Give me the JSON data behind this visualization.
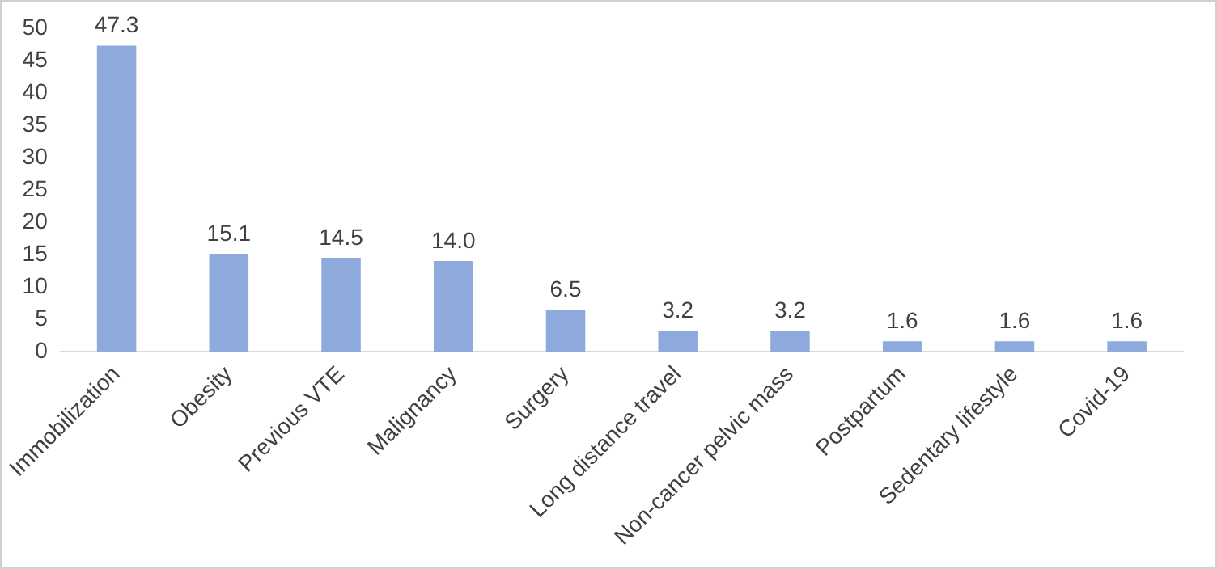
{
  "chart_data": {
    "type": "bar",
    "categories": [
      "Immobilization",
      "Obesity",
      "Previous VTE",
      "Malignancy",
      "Surgery",
      "Long distance travel",
      "Non-cancer pelvic mass",
      "Postpartum",
      "Sedentary lifestyle",
      "Covid-19"
    ],
    "values": [
      47.3,
      15.1,
      14.5,
      14.0,
      6.5,
      3.2,
      3.2,
      1.6,
      1.6,
      1.6
    ],
    "value_labels": [
      "47.3",
      "15.1",
      "14.5",
      "14.0",
      "6.5",
      "3.2",
      "3.2",
      "1.6",
      "1.6",
      "1.6"
    ],
    "color": "#8eaadc",
    "ylim": [
      0,
      50
    ],
    "yticks": [
      0,
      5,
      10,
      15,
      20,
      25,
      30,
      35,
      40,
      45,
      50
    ],
    "grid": false,
    "legend": false
  }
}
